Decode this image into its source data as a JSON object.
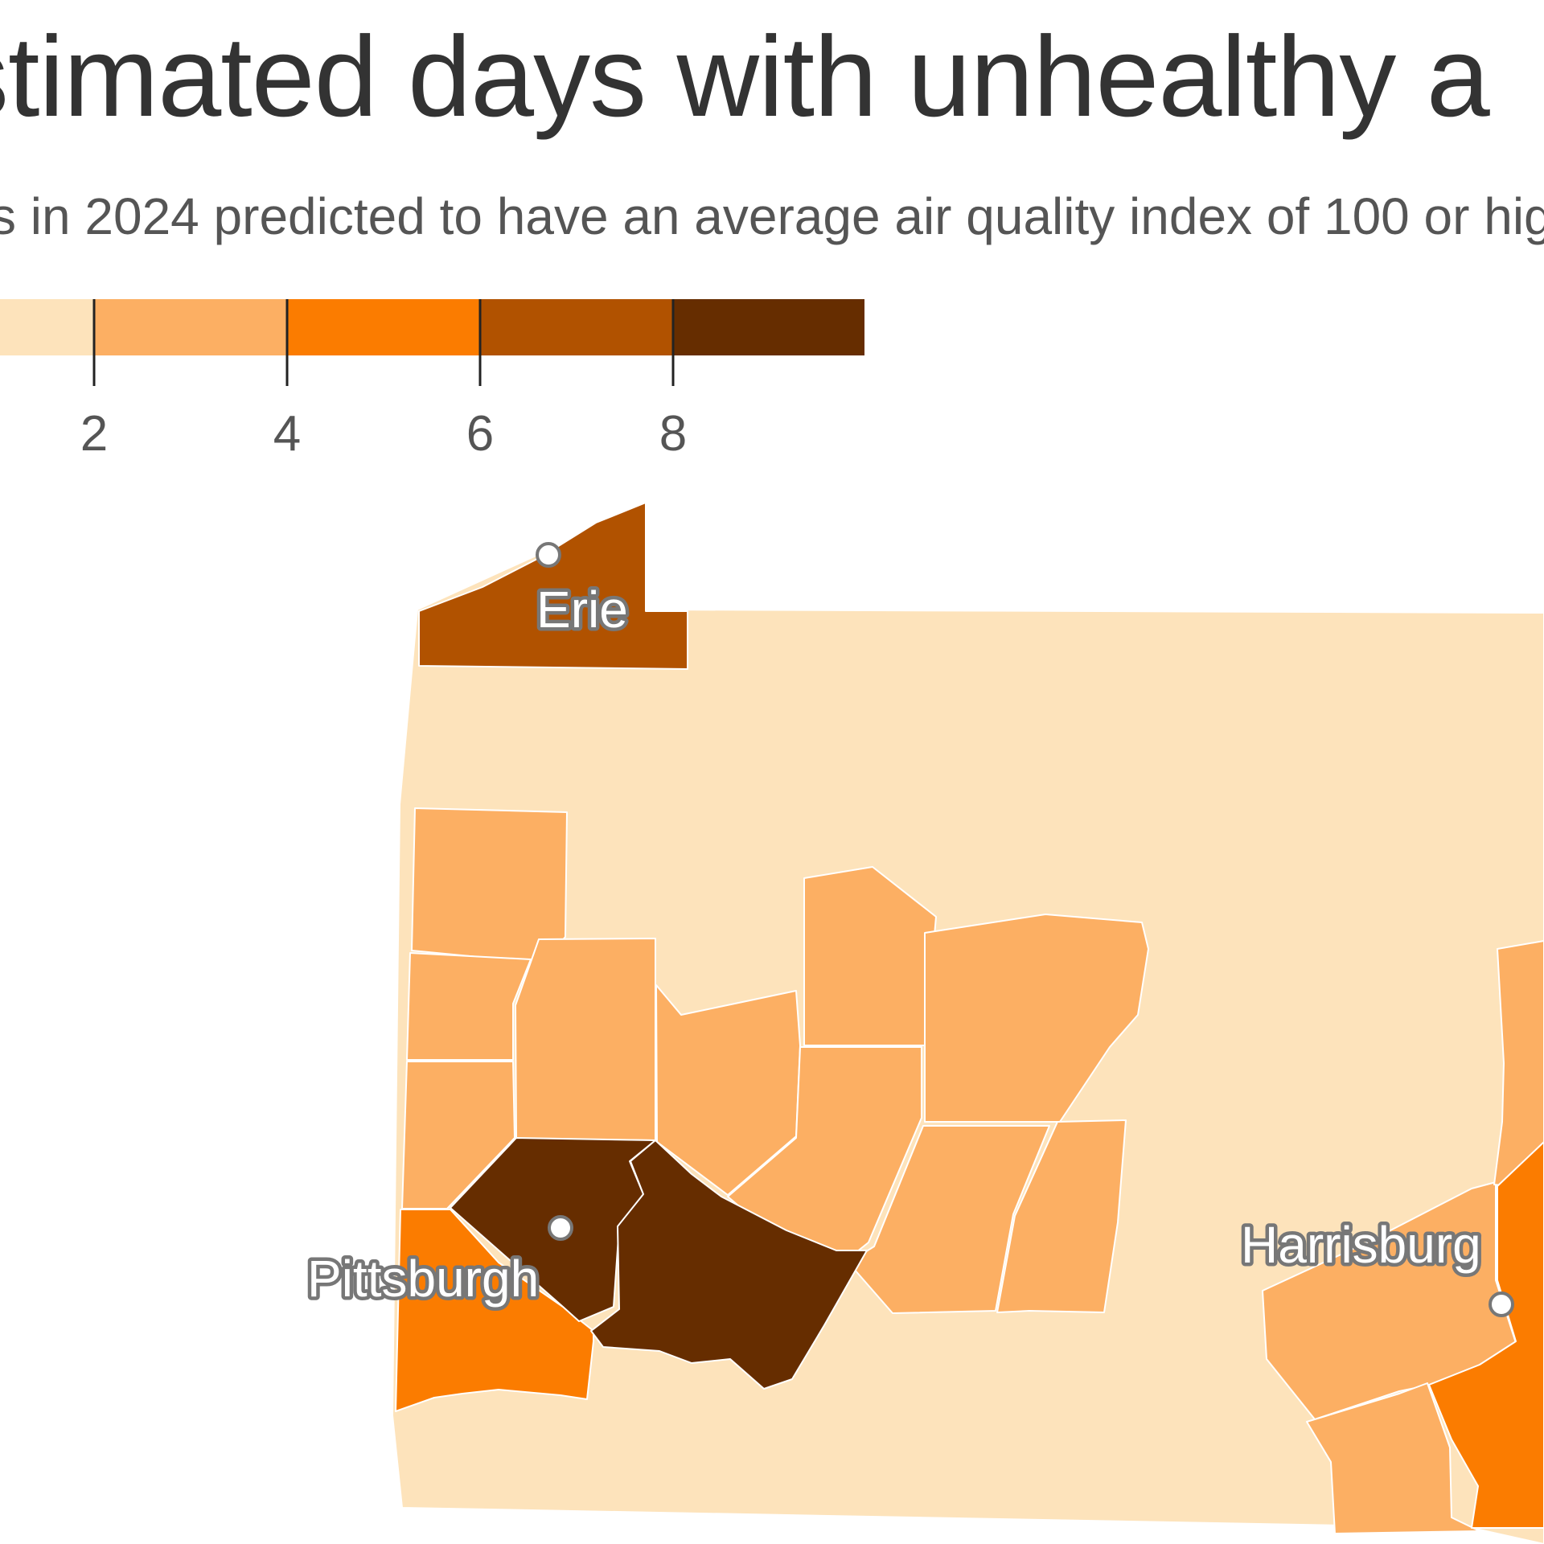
{
  "title": "stimated days with unhealthy a",
  "subtitle": "s in 2024 predicted to have an average air quality index of 100 or hig",
  "legend": {
    "bins": [
      {
        "color": "#fde3bb"
      },
      {
        "color": "#fcaf63"
      },
      {
        "color": "#fb7c00"
      },
      {
        "color": "#b15200"
      },
      {
        "color": "#662d00"
      }
    ],
    "ticks": [
      "2",
      "4",
      "6",
      "8"
    ]
  },
  "map": {
    "region": "Pennsylvania (western and central counties)",
    "cities": [
      {
        "name": "Erie"
      },
      {
        "name": "Pittsburgh"
      },
      {
        "name": "Harrisburg"
      }
    ],
    "color_levels": {
      "level_0_2": "#fde3bb",
      "level_2_4": "#fcaf63",
      "level_4_6": "#fb7c00",
      "level_6_8": "#b15200",
      "level_8_plus": "#662d00"
    },
    "border_color": "#ffffff"
  }
}
